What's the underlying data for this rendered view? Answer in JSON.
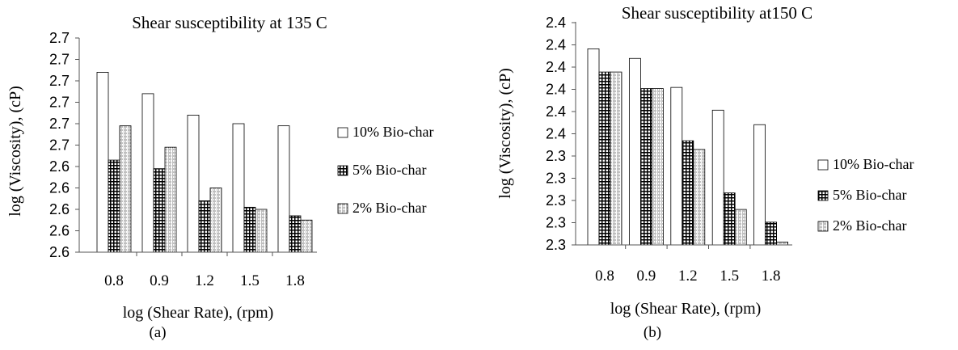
{
  "chart_data": [
    {
      "type": "bar",
      "title": "Shear susceptibility at 135 C",
      "xlabel": "log (Shear Rate), (rpm)",
      "ylabel": "log (Viscosity), (cP)",
      "caption": "(a)",
      "categories": [
        "0.8",
        "0.9",
        "1.2",
        "1.5",
        "1.8"
      ],
      "y_tick_labels": [
        "2.6",
        "2.6",
        "2.6",
        "2.6",
        "2.6",
        "2.7",
        "2.7",
        "2.7",
        "2.7",
        "2.7",
        "2.7"
      ],
      "ylim": [
        2.6,
        2.7
      ],
      "legend_position": "right",
      "grid": false,
      "series": [
        {
          "name": "10% Bio-char",
          "pattern": "white",
          "values": [
            2.684,
            2.674,
            2.664,
            2.66,
            2.659
          ]
        },
        {
          "name": "5% Bio-char",
          "pattern": "grid",
          "values": [
            2.643,
            2.639,
            2.624,
            2.621,
            2.617
          ]
        },
        {
          "name": "2% Bio-char",
          "pattern": "diagonal",
          "values": [
            2.659,
            2.649,
            2.63,
            2.62,
            2.615
          ]
        }
      ]
    },
    {
      "type": "bar",
      "title": "Shear susceptibility at150 C",
      "xlabel": "log (Shear Rate), (rpm)",
      "ylabel": "log (Viscosity), (cP)",
      "caption": "(b)",
      "categories": [
        "0.8",
        "0.9",
        "1.2",
        "1.5",
        "1.8"
      ],
      "y_tick_labels": [
        "2.3",
        "2.3",
        "2.3",
        "2.3",
        "2.3",
        "2.4",
        "2.4",
        "2.4",
        "2.4",
        "2.4",
        "2.4"
      ],
      "ylim": [
        2.3,
        2.4
      ],
      "legend_position": "right",
      "grid": false,
      "series": [
        {
          "name": "10% Bio-char",
          "pattern": "white",
          "values": [
            2.3879,
            2.3836,
            2.3706,
            2.3604,
            2.3539
          ]
        },
        {
          "name": "5% Bio-char",
          "pattern": "grid",
          "values": [
            2.3775,
            2.3701,
            2.3467,
            2.3233,
            2.3102
          ]
        },
        {
          "name": "2% Bio-char",
          "pattern": "diagonal",
          "values": [
            2.3775,
            2.3701,
            2.3428,
            2.3159,
            2.3013
          ]
        }
      ]
    }
  ]
}
